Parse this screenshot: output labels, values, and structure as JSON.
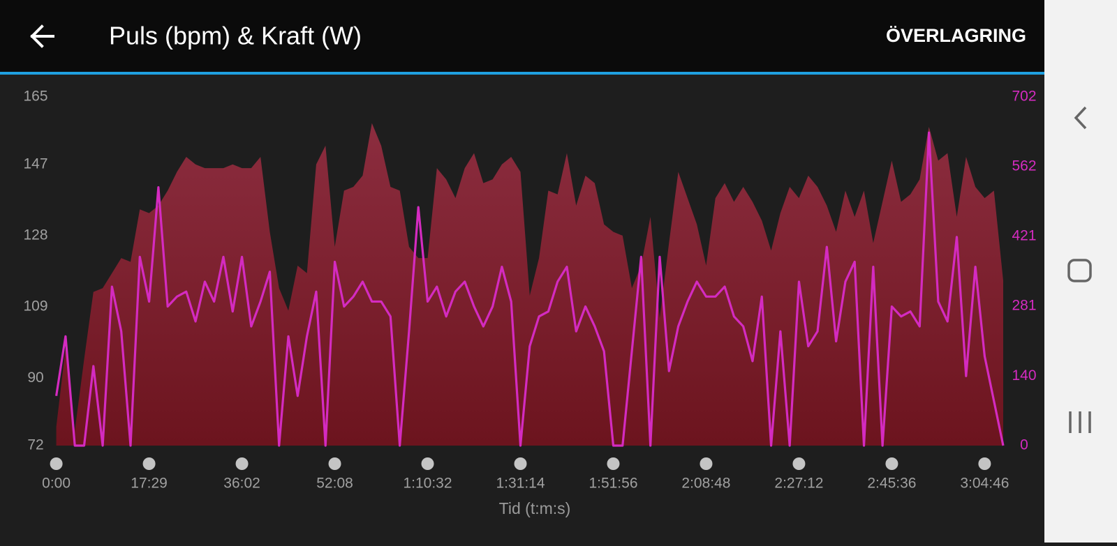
{
  "chart_data": {
    "type": "line",
    "title": "Puls (bpm) & Kraft (W)",
    "action": "ÖVERLAGRING",
    "xlabel": "Tid (t:m:s)",
    "xlim": [
      0,
      102
    ],
    "xticks": [
      {
        "value": 0,
        "label": "0:00"
      },
      {
        "value": 10,
        "label": "17:29"
      },
      {
        "value": 20,
        "label": "36:02"
      },
      {
        "value": 30,
        "label": "52:08"
      },
      {
        "value": 40,
        "label": "1:10:32"
      },
      {
        "value": 50,
        "label": "1:31:14"
      },
      {
        "value": 60,
        "label": "1:51:56"
      },
      {
        "value": 70,
        "label": "2:08:48"
      },
      {
        "value": 80,
        "label": "2:27:12"
      },
      {
        "value": 90,
        "label": "2:45:36"
      },
      {
        "value": 100,
        "label": "3:04:46"
      }
    ],
    "ylim": [
      72,
      165
    ],
    "yticks": [
      72,
      90,
      109,
      128,
      147,
      165
    ],
    "y2lim": [
      0,
      702
    ],
    "y2ticks": [
      0,
      140,
      281,
      421,
      562,
      702
    ],
    "series": [
      {
        "type": "area",
        "color": "#7a2030",
        "values": [
          77,
          98,
          76,
          95,
          113,
          114,
          118,
          122,
          121,
          135,
          134,
          136,
          140,
          145,
          149,
          147,
          146,
          146,
          146,
          147,
          146,
          146,
          149,
          129,
          114,
          108,
          120,
          118,
          147,
          152,
          125,
          140,
          141,
          144,
          158,
          152,
          141,
          140,
          125,
          122,
          122,
          146,
          143,
          138,
          146,
          150,
          142,
          143,
          147,
          149,
          145,
          112,
          122,
          140,
          139,
          150,
          136,
          144,
          142,
          131,
          129,
          128,
          114,
          120,
          133,
          106,
          126,
          145,
          138,
          131,
          120,
          138,
          142,
          137,
          141,
          137,
          132,
          124,
          134,
          141,
          138,
          144,
          141,
          136,
          129,
          140,
          133,
          140,
          126,
          137,
          148,
          137,
          139,
          143,
          157,
          148,
          150,
          133,
          149,
          141,
          138,
          140,
          116
        ]
      },
      {
        "type": "line",
        "color": "#d42bc0",
        "axis": "y2",
        "values": [
          100,
          220,
          0,
          0,
          160,
          0,
          320,
          230,
          0,
          380,
          290,
          520,
          280,
          300,
          310,
          250,
          330,
          290,
          380,
          270,
          380,
          240,
          290,
          350,
          0,
          220,
          100,
          220,
          310,
          0,
          370,
          280,
          300,
          330,
          290,
          290,
          260,
          0,
          230,
          480,
          290,
          320,
          260,
          310,
          330,
          280,
          240,
          280,
          360,
          290,
          0,
          200,
          260,
          270,
          330,
          360,
          230,
          280,
          240,
          190,
          0,
          0,
          190,
          380,
          0,
          380,
          150,
          240,
          290,
          330,
          300,
          300,
          320,
          260,
          240,
          170,
          300,
          0,
          230,
          0,
          330,
          200,
          230,
          400,
          210,
          330,
          370,
          0,
          360,
          0,
          280,
          260,
          270,
          240,
          630,
          290,
          250,
          420,
          140,
          360,
          180,
          90,
          0
        ]
      }
    ]
  }
}
